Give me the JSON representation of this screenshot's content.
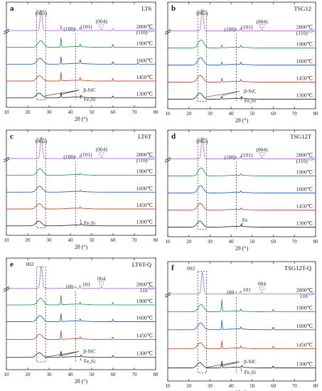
{
  "xlabel": "2θ (°)",
  "x_ticks": [
    10,
    20,
    30,
    40,
    50,
    60,
    70,
    80
  ],
  "colors": {
    "2800": "#b27ad9",
    "1900": "#2f9e54",
    "1600": "#2f5fcc",
    "1450": "#c94b3a",
    "1300": "#333333"
  },
  "chart_data": [
    {
      "type": "line",
      "letter": "a",
      "title": "LT6",
      "style": "a",
      "xlim": [
        10,
        80
      ],
      "series": [
        {
          "name": "2800℃",
          "peaks": [
            [
              26.3,
              30
            ],
            [
              35.6,
              8
            ],
            [
              42.4,
              3
            ],
            [
              44.5,
              5
            ],
            [
              54.6,
              3
            ],
            [
              59.9,
              3
            ]
          ]
        },
        {
          "name": "1900℃",
          "peaks": [
            [
              26.1,
              10
            ],
            [
              35.6,
              14
            ],
            [
              44.6,
              4
            ],
            [
              59.9,
              5
            ]
          ]
        },
        {
          "name": "1600℃",
          "peaks": [
            [
              25.8,
              9
            ],
            [
              35.6,
              11
            ],
            [
              44.6,
              6
            ],
            [
              59.9,
              4
            ],
            [
              71.7,
              2
            ]
          ]
        },
        {
          "name": "1450℃",
          "peaks": [
            [
              25.6,
              8
            ],
            [
              35.6,
              13
            ],
            [
              44.6,
              4
            ],
            [
              59.9,
              4
            ]
          ]
        },
        {
          "name": "1300℃",
          "peaks": [
            [
              25.4,
              7
            ],
            [
              35.6,
              8
            ],
            [
              45.1,
              3
            ],
            [
              59.9,
              3
            ]
          ]
        }
      ],
      "labels": {
        "p002": "(002)",
        "p100": "(100)",
        "p101": "(101)",
        "p004": "(004)",
        "p110": "(110)",
        "sic": "β-SiC",
        "fesi": "Fe₃Si"
      }
    },
    {
      "type": "line",
      "letter": "b",
      "title": "TSG12",
      "style": "a",
      "xlim": [
        10,
        80
      ],
      "series": [
        {
          "name": "2800℃",
          "peaks": [
            [
              26.4,
              32
            ],
            [
              42.4,
              3
            ],
            [
              44.5,
              5
            ],
            [
              54.6,
              3
            ]
          ]
        },
        {
          "name": "1900℃",
          "peaks": [
            [
              25.8,
              12
            ],
            [
              35.6,
              4
            ],
            [
              44.6,
              3
            ]
          ]
        },
        {
          "name": "1600℃",
          "peaks": [
            [
              25.6,
              11
            ],
            [
              35.6,
              4
            ],
            [
              44.6,
              3
            ]
          ]
        },
        {
          "name": "1450℃",
          "peaks": [
            [
              25.4,
              10
            ],
            [
              35.6,
              5
            ],
            [
              44.6,
              3
            ]
          ]
        },
        {
          "name": "1300℃",
          "peaks": [
            [
              25.2,
              9
            ],
            [
              35.6,
              4
            ],
            [
              45.1,
              3
            ]
          ]
        }
      ],
      "labels": {
        "p002": "(002)",
        "p100": "(100)",
        "p101": "(101)",
        "p004": "(004)",
        "p110": "(110)",
        "sic": "β-SiC",
        "fesi": "Fe₃Si"
      }
    },
    {
      "type": "line",
      "letter": "c",
      "title": "LT6T",
      "style": "c",
      "xlim": [
        10,
        80
      ],
      "series": [
        {
          "name": "2800℃",
          "peaks": [
            [
              26.4,
              32
            ],
            [
              42.4,
              3
            ],
            [
              44.5,
              5
            ],
            [
              54.6,
              3
            ]
          ]
        },
        {
          "name": "1900℃",
          "peaks": [
            [
              25.8,
              10
            ],
            [
              44.6,
              2
            ]
          ]
        },
        {
          "name": "1600℃",
          "peaks": [
            [
              25.6,
              9
            ],
            [
              44.6,
              2
            ]
          ]
        },
        {
          "name": "1450℃",
          "peaks": [
            [
              25.4,
              8
            ],
            [
              44.6,
              2
            ]
          ]
        },
        {
          "name": "1300℃",
          "peaks": [
            [
              25.2,
              7
            ],
            [
              45.1,
              3
            ]
          ]
        }
      ],
      "labels": {
        "p002": "(002)",
        "p100": "(100)",
        "p101": "(101)",
        "p004": "(004)",
        "p110": "(110)",
        "fesi": "Fe₃Si"
      }
    },
    {
      "type": "line",
      "letter": "d",
      "title": "TSG12T",
      "style": "d",
      "xlim": [
        10,
        80
      ],
      "series": [
        {
          "name": "2800℃",
          "peaks": [
            [
              26.4,
              32
            ],
            [
              42.4,
              3
            ],
            [
              44.5,
              5
            ],
            [
              54.6,
              3
            ]
          ]
        },
        {
          "name": "1900℃",
          "peaks": [
            [
              25.8,
              12
            ],
            [
              44.6,
              2
            ]
          ]
        },
        {
          "name": "1600℃",
          "peaks": [
            [
              25.6,
              11
            ],
            [
              44.6,
              2
            ]
          ]
        },
        {
          "name": "1450℃",
          "peaks": [
            [
              25.4,
              10
            ],
            [
              44.6,
              2
            ]
          ]
        },
        {
          "name": "1300℃",
          "peaks": [
            [
              25.2,
              9
            ],
            [
              44.8,
              3
            ]
          ]
        }
      ],
      "labels": {
        "p002": "(002)",
        "p100": "(100)",
        "p101": "(101)",
        "p004": "(004)",
        "p110": "(110)",
        "fe": "Fe"
      }
    },
    {
      "type": "line",
      "letter": "e",
      "title": "LT6T-Q",
      "style": "e",
      "xlim": [
        10,
        80
      ],
      "series": [
        {
          "name": "2800℃",
          "peaks": [
            [
              26.4,
              32
            ],
            [
              42.4,
              3
            ],
            [
              44.5,
              5
            ],
            [
              54.6,
              3
            ]
          ]
        },
        {
          "name": "1900℃",
          "peaks": [
            [
              26.0,
              10
            ],
            [
              35.6,
              14
            ],
            [
              44.6,
              3
            ],
            [
              59.9,
              4
            ]
          ]
        },
        {
          "name": "1600℃",
          "peaks": [
            [
              25.8,
              9
            ],
            [
              35.6,
              12
            ],
            [
              44.6,
              3
            ],
            [
              59.9,
              4
            ]
          ]
        },
        {
          "name": "1450℃",
          "peaks": [
            [
              25.6,
              8
            ],
            [
              35.6,
              13
            ],
            [
              44.6,
              3
            ],
            [
              59.9,
              4
            ]
          ]
        },
        {
          "name": "1300℃",
          "peaks": [
            [
              25.4,
              7
            ],
            [
              35.6,
              9
            ],
            [
              45.1,
              3
            ],
            [
              59.9,
              3
            ]
          ]
        }
      ],
      "labels": {
        "p002": "002",
        "p100": "100",
        "p101": "101",
        "p004": "004",
        "p110": "110",
        "sic": "β-SiC",
        "fesi": "Fe₃Si"
      }
    },
    {
      "type": "line",
      "letter": "f",
      "title": "TSG12T-Q",
      "style": "e",
      "xlim": [
        10,
        80
      ],
      "series": [
        {
          "name": "2800℃",
          "peaks": [
            [
              26.4,
              32
            ],
            [
              42.4,
              3
            ],
            [
              44.5,
              5
            ],
            [
              54.6,
              3
            ]
          ]
        },
        {
          "name": "1900℃",
          "peaks": [
            [
              25.8,
              11
            ],
            [
              35.6,
              18
            ],
            [
              44.6,
              3
            ],
            [
              59.9,
              4
            ]
          ]
        },
        {
          "name": "1600℃",
          "peaks": [
            [
              25.6,
              10
            ],
            [
              35.6,
              14
            ],
            [
              44.6,
              3
            ],
            [
              59.9,
              4
            ]
          ]
        },
        {
          "name": "1450℃",
          "peaks": [
            [
              25.4,
              9
            ],
            [
              35.6,
              12
            ],
            [
              44.6,
              3
            ],
            [
              59.9,
              4
            ]
          ]
        },
        {
          "name": "1300℃",
          "peaks": [
            [
              25.2,
              8
            ],
            [
              35.6,
              10
            ],
            [
              45.1,
              3
            ],
            [
              59.9,
              3
            ]
          ]
        }
      ],
      "labels": {
        "p002": "002",
        "p100": "100",
        "p101": "101",
        "p004": "004",
        "p110": "110",
        "sic": "β-SiC",
        "fesi": "Fe₃Si"
      }
    }
  ]
}
